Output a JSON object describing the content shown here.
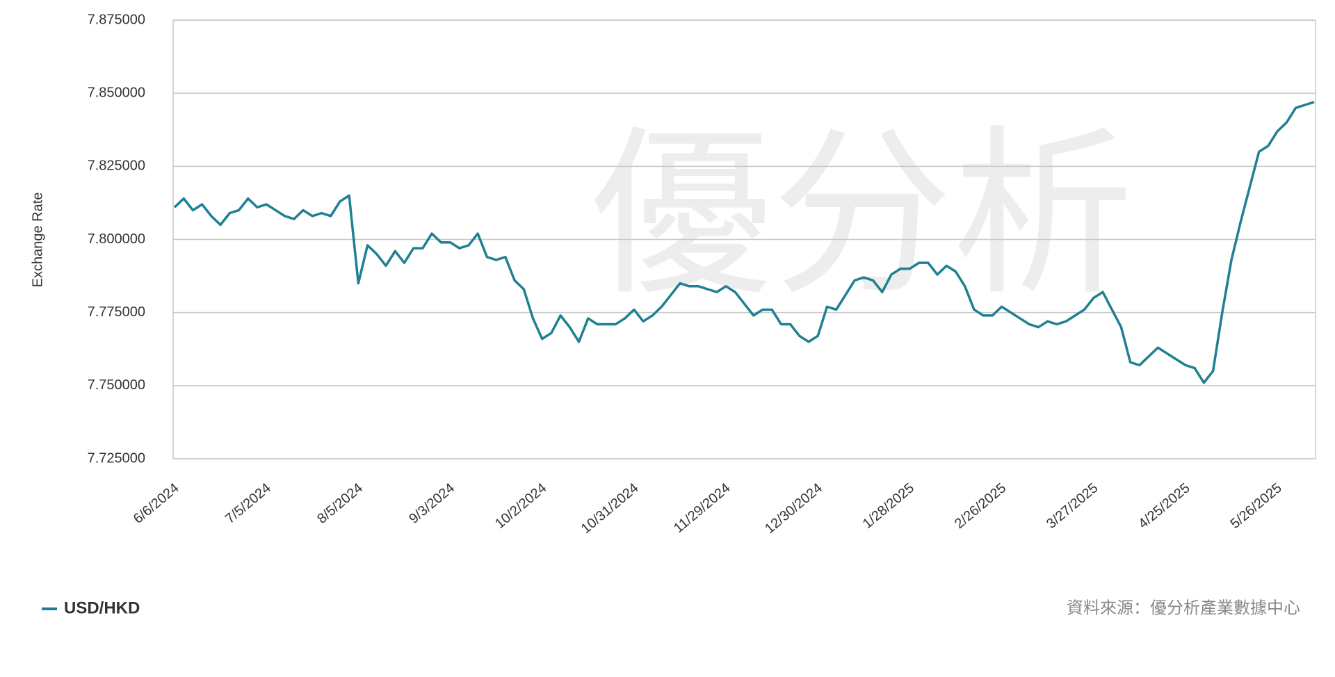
{
  "chart_data": {
    "type": "line",
    "y_label": "Exchange Rate",
    "watermark": "優分析",
    "source": "資料來源：優分析產業數據中心",
    "categories": [
      "6/6/2024",
      null,
      null,
      null,
      null,
      null,
      null,
      null,
      null,
      null,
      "7/5/2024",
      null,
      null,
      null,
      null,
      null,
      null,
      null,
      null,
      null,
      "8/5/2024",
      null,
      null,
      null,
      null,
      null,
      null,
      null,
      null,
      null,
      "9/3/2024",
      null,
      null,
      null,
      null,
      null,
      null,
      null,
      null,
      null,
      "10/2/2024",
      null,
      null,
      null,
      null,
      null,
      null,
      null,
      null,
      null,
      "10/31/2024",
      null,
      null,
      null,
      null,
      null,
      null,
      null,
      null,
      null,
      "11/29/2024",
      null,
      null,
      null,
      null,
      null,
      null,
      null,
      null,
      null,
      "12/30/2024",
      null,
      null,
      null,
      null,
      null,
      null,
      null,
      null,
      null,
      "1/28/2025",
      null,
      null,
      null,
      null,
      null,
      null,
      null,
      null,
      null,
      "2/26/2025",
      null,
      null,
      null,
      null,
      null,
      null,
      null,
      null,
      null,
      "3/27/2025",
      null,
      null,
      null,
      null,
      null,
      null,
      null,
      null,
      null,
      "4/25/2025",
      null,
      null,
      null,
      null,
      null,
      null,
      null,
      null,
      null,
      "5/26/2025",
      null,
      null,
      null,
      null
    ],
    "series": [
      {
        "name": "USD/HKD",
        "color": "#1f7f93",
        "values": [
          7.811,
          7.814,
          7.81,
          7.812,
          7.808,
          7.805,
          7.809,
          7.81,
          7.814,
          7.811,
          7.812,
          7.81,
          7.808,
          7.807,
          7.81,
          7.808,
          7.809,
          7.808,
          7.813,
          7.815,
          7.785,
          7.798,
          7.795,
          7.791,
          7.796,
          7.792,
          7.797,
          7.797,
          7.802,
          7.799,
          7.799,
          7.797,
          7.798,
          7.802,
          7.794,
          7.793,
          7.794,
          7.786,
          7.783,
          7.773,
          7.766,
          7.768,
          7.774,
          7.77,
          7.765,
          7.773,
          7.771,
          7.771,
          7.771,
          7.773,
          7.776,
          7.772,
          7.774,
          7.777,
          7.781,
          7.785,
          7.784,
          7.784,
          7.783,
          7.782,
          7.784,
          7.782,
          7.778,
          7.774,
          7.776,
          7.776,
          7.771,
          7.771,
          7.767,
          7.765,
          7.767,
          7.777,
          7.776,
          7.781,
          7.786,
          7.787,
          7.786,
          7.782,
          7.788,
          7.79,
          7.79,
          7.792,
          7.792,
          7.788,
          7.791,
          7.789,
          7.784,
          7.776,
          7.774,
          7.774,
          7.777,
          7.775,
          7.773,
          7.771,
          7.77,
          7.772,
          7.771,
          7.772,
          7.774,
          7.776,
          7.78,
          7.782,
          7.776,
          7.77,
          7.758,
          7.757,
          7.76,
          7.763,
          7.761,
          7.759,
          7.757,
          7.756,
          7.751,
          7.755,
          7.775,
          7.793,
          7.806,
          7.818,
          7.83,
          7.832,
          7.837,
          7.84,
          7.845,
          7.846,
          7.847
        ]
      }
    ],
    "ylim": [
      7.725,
      7.875
    ],
    "yticks": [
      {
        "value": 7.725,
        "label": "7.725000"
      },
      {
        "value": 7.75,
        "label": "7.750000"
      },
      {
        "value": 7.775,
        "label": "7.775000"
      },
      {
        "value": 7.8,
        "label": "7.800000"
      },
      {
        "value": 7.825,
        "label": "7.825000"
      },
      {
        "value": 7.85,
        "label": "7.850000"
      },
      {
        "value": 7.875,
        "label": "7.875000"
      }
    ],
    "grid": true,
    "legend": "bottom-left"
  }
}
